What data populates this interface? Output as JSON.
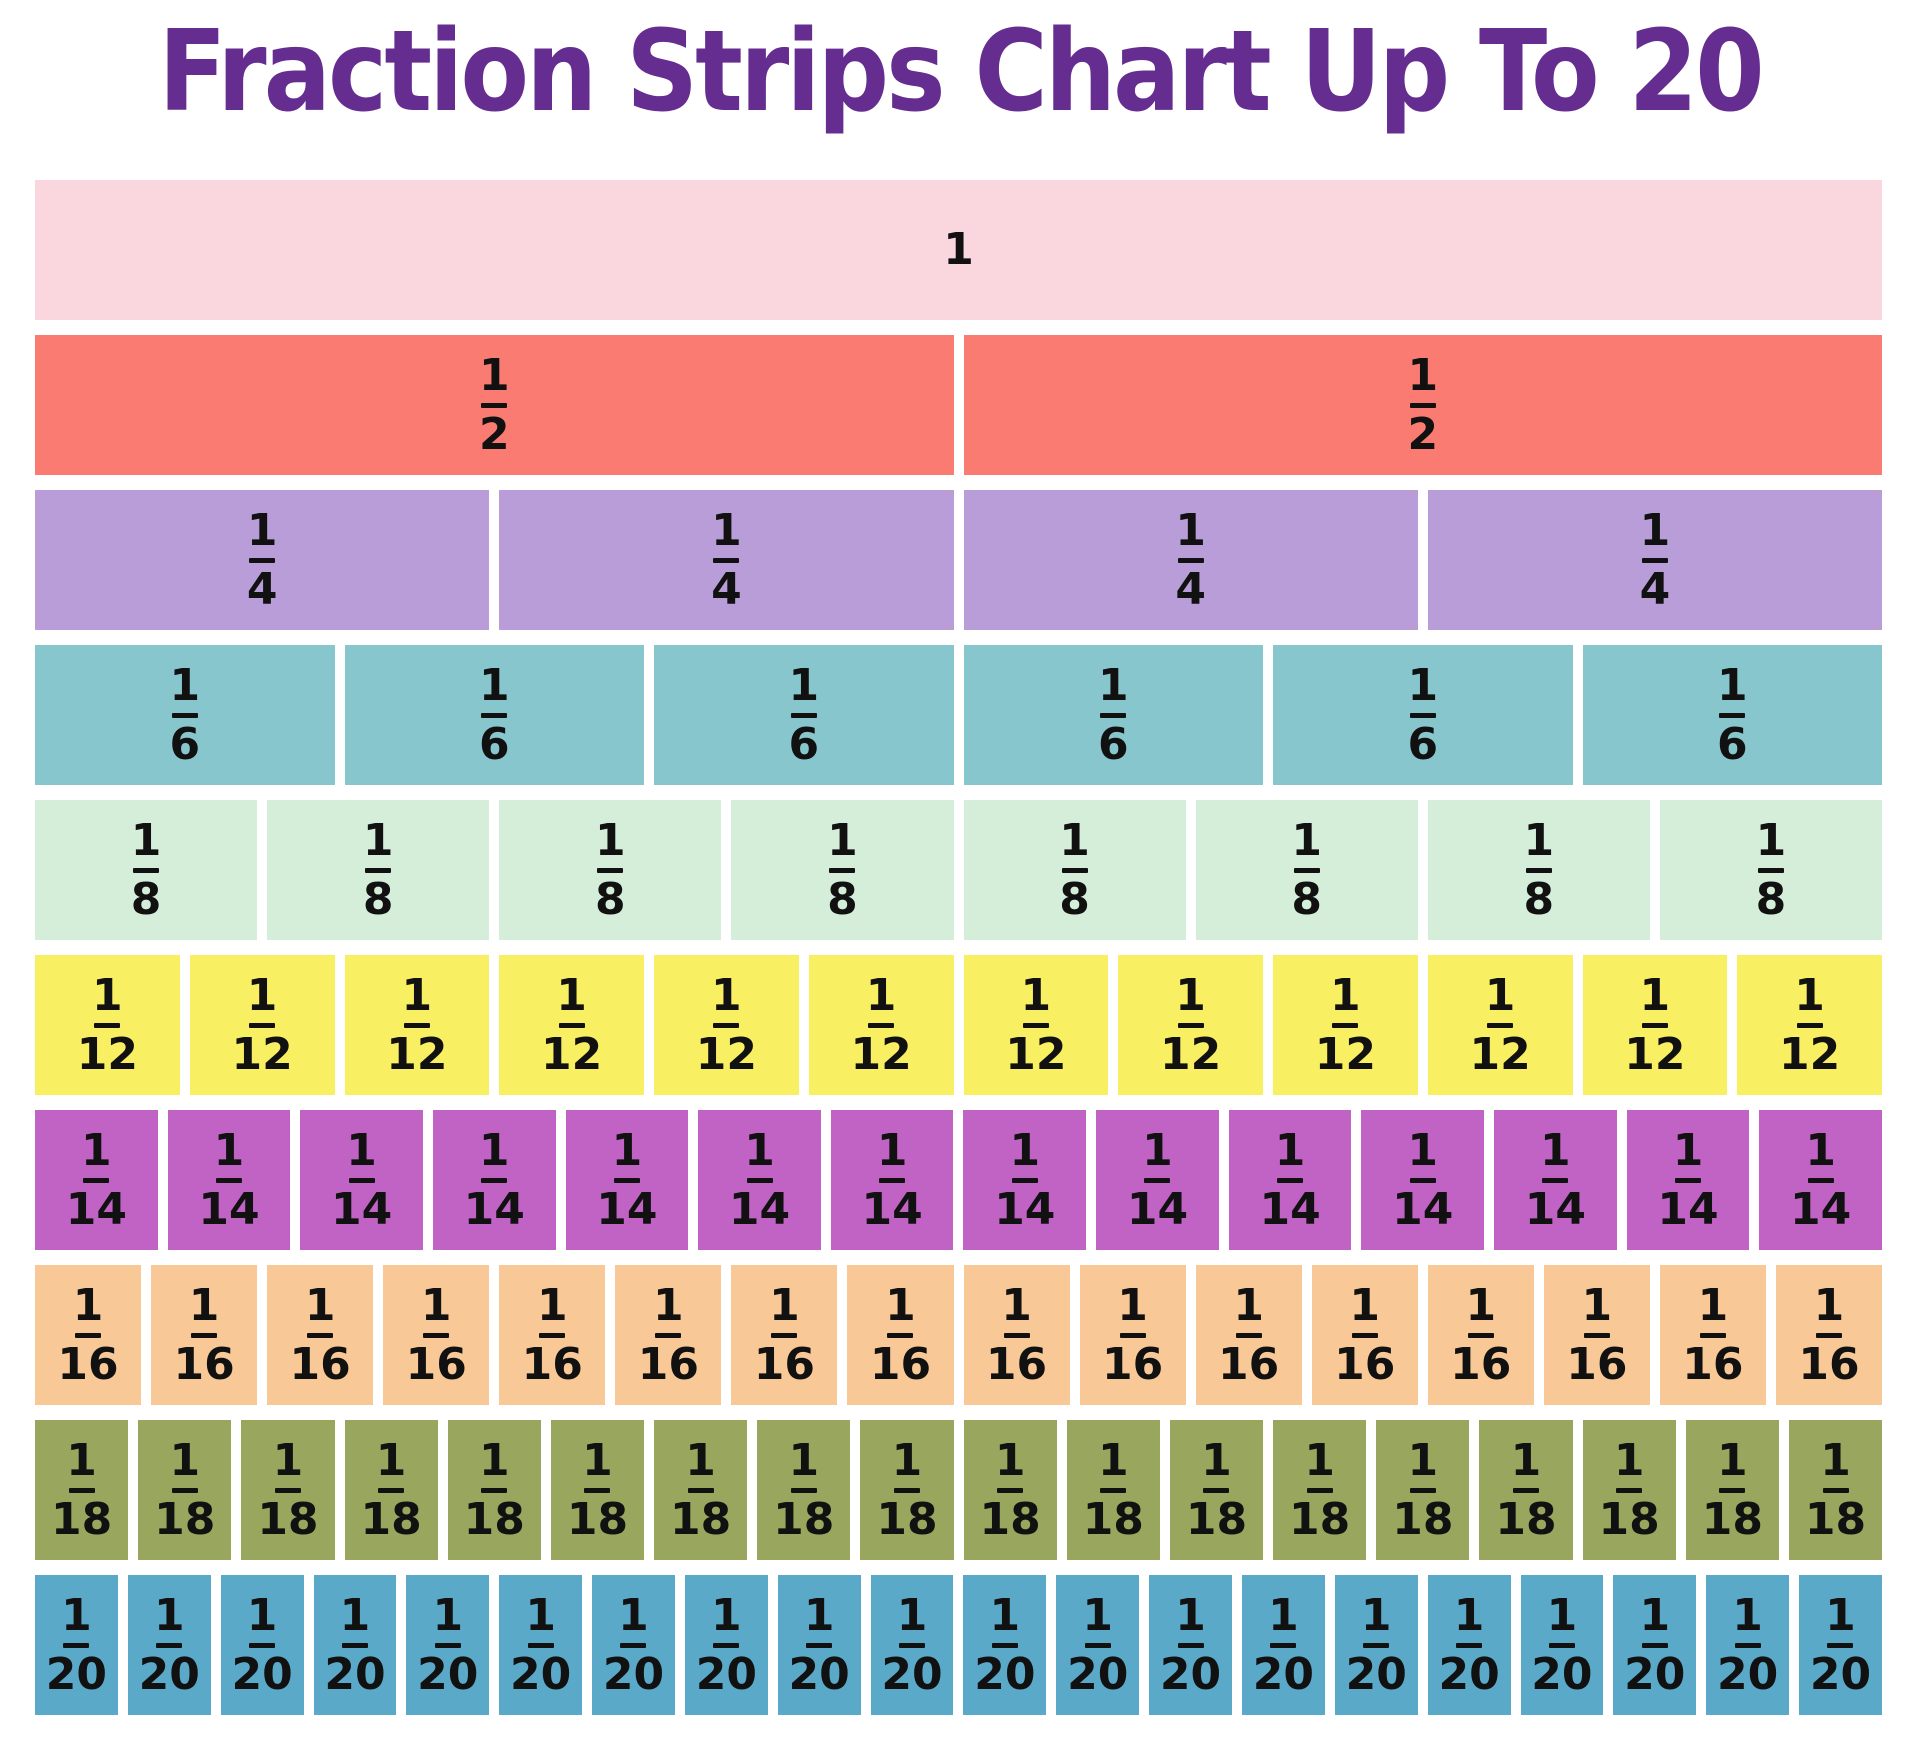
{
  "title": {
    "text": "Fraction Strips Chart Up To 20",
    "color": "#662d91"
  },
  "page": {
    "background": "#ffffff",
    "label_color": "#111111"
  },
  "strips": [
    {
      "id": "whole",
      "fraction": "1",
      "numerator": "1",
      "denominator": "",
      "parts": 1,
      "color": "#fad7de"
    },
    {
      "id": "halves",
      "fraction": "1/2",
      "numerator": "1",
      "denominator": "2",
      "parts": 2,
      "color": "#f97b72"
    },
    {
      "id": "fourths",
      "fraction": "1/4",
      "numerator": "1",
      "denominator": "4",
      "parts": 4,
      "color": "#b99dd8"
    },
    {
      "id": "sixths",
      "fraction": "1/6",
      "numerator": "1",
      "denominator": "6",
      "parts": 6,
      "color": "#87c6cd"
    },
    {
      "id": "eighths",
      "fraction": "1/8",
      "numerator": "1",
      "denominator": "8",
      "parts": 8,
      "color": "#d5eeda"
    },
    {
      "id": "twelfths",
      "fraction": "1/12",
      "numerator": "1",
      "denominator": "12",
      "parts": 12,
      "color": "#f9ef62"
    },
    {
      "id": "fourteenths",
      "fraction": "1/14",
      "numerator": "1",
      "denominator": "14",
      "parts": 14,
      "color": "#c162c5"
    },
    {
      "id": "sixteenths",
      "fraction": "1/16",
      "numerator": "1",
      "denominator": "16",
      "parts": 16,
      "color": "#f8c997"
    },
    {
      "id": "eighteenths",
      "fraction": "1/18",
      "numerator": "1",
      "denominator": "18",
      "parts": 18,
      "color": "#98a75d"
    },
    {
      "id": "twentieths",
      "fraction": "1/20",
      "numerator": "1",
      "denominator": "20",
      "parts": 20,
      "color": "#5ba9c9"
    }
  ]
}
